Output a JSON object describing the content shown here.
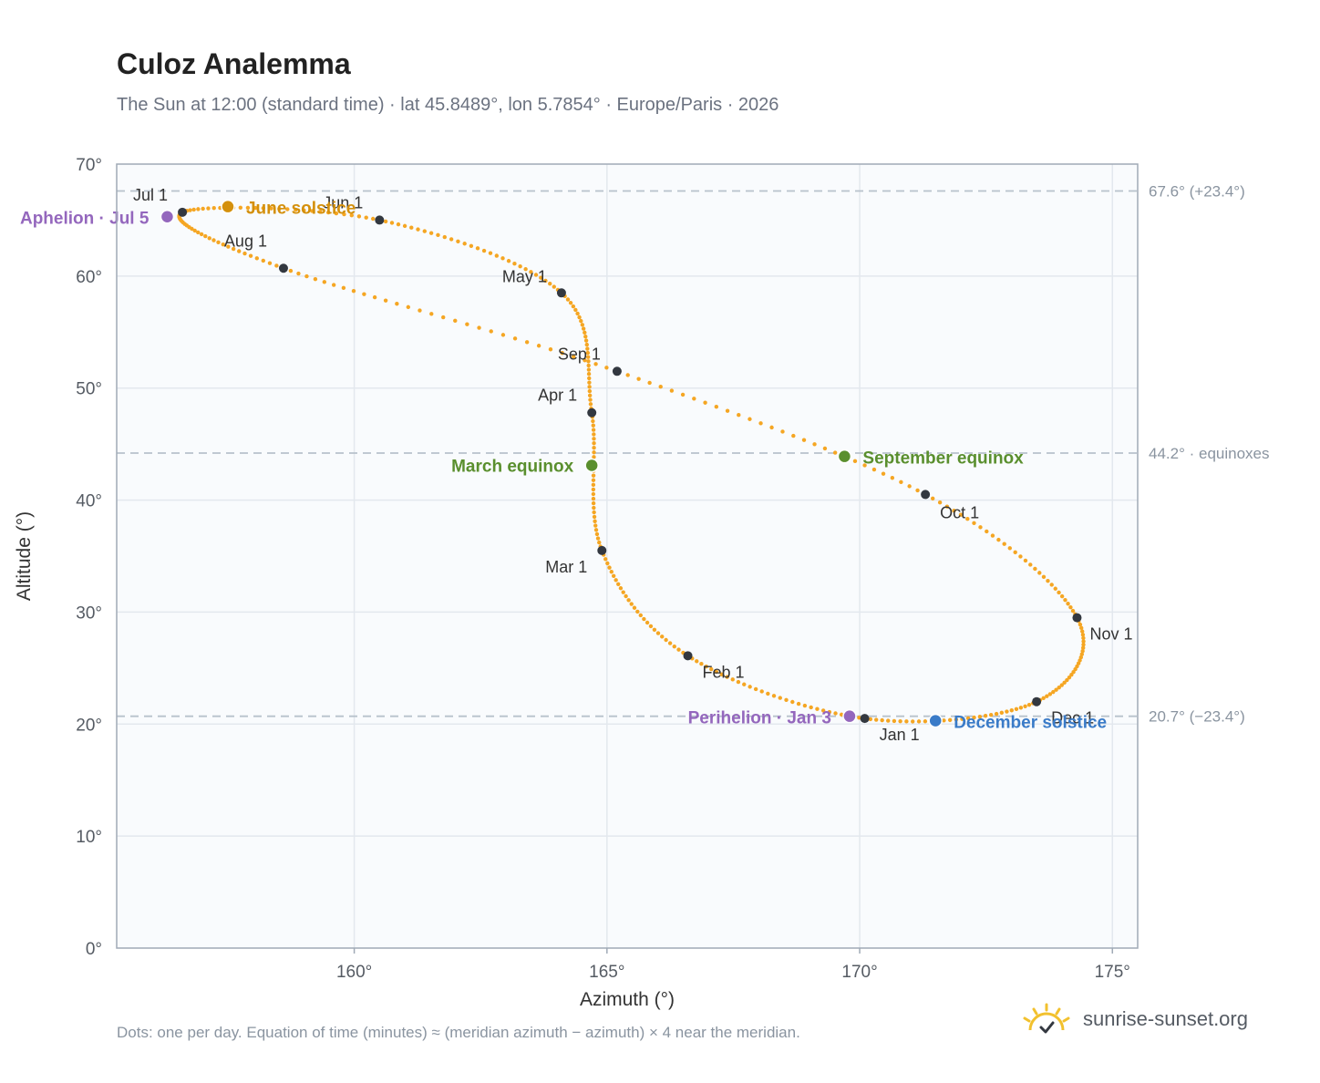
{
  "title": "Culoz Analemma",
  "subtitle": "The Sun at 12:00 (standard time) · lat 45.8489°, lon 5.7854° · Europe/Paris · 2026",
  "footnote": "Dots: one per day. Equation of time (minutes) ≈ (meridian azimuth − azimuth) × 4 near the meridian.",
  "brand": {
    "name": "sunrise-sunset.org",
    "icon": "sun-logo-icon"
  },
  "colors": {
    "curve": "#f5a623",
    "month_marker": "#333840",
    "equinox": "#5a8f2e",
    "june_solstice": "#d4900c",
    "december_solstice": "#3a7bc8",
    "apsis": "#9467bd",
    "reference_line": "#b8c2cc",
    "plot_bg": "#f9fbfd",
    "grid": "#e3e8ee"
  },
  "chart_data": {
    "type": "scatter",
    "title": "Culoz Analemma",
    "xlabel": "Azimuth (°)",
    "ylabel": "Altitude (°)",
    "xlim": [
      155.3,
      175.5
    ],
    "ylim": [
      0,
      70
    ],
    "x_ticks": [
      160,
      165,
      170,
      175
    ],
    "x_tick_labels": [
      "160°",
      "165°",
      "170°",
      "175°"
    ],
    "y_ticks": [
      0,
      10,
      20,
      30,
      40,
      50,
      60,
      70
    ],
    "y_tick_labels": [
      "0°",
      "10°",
      "20°",
      "30°",
      "40°",
      "50°",
      "60°",
      "70°"
    ],
    "grid": true,
    "reference_lines": [
      {
        "y": 67.6,
        "label": "67.6° (+23.4°)"
      },
      {
        "y": 44.2,
        "label": "44.2° · equinoxes"
      },
      {
        "y": 20.7,
        "label": "20.7° (−23.4°)"
      }
    ],
    "month_markers": [
      {
        "label": "Jan 1",
        "x": 170.1,
        "y": 20.5
      },
      {
        "label": "Feb 1",
        "x": 166.6,
        "y": 26.1
      },
      {
        "label": "Mar 1",
        "x": 164.9,
        "y": 35.5
      },
      {
        "label": "Apr 1",
        "x": 164.7,
        "y": 47.8
      },
      {
        "label": "May 1",
        "x": 164.1,
        "y": 58.5
      },
      {
        "label": "Jun 1",
        "x": 160.5,
        "y": 65.0
      },
      {
        "label": "Jul 1",
        "x": 156.6,
        "y": 65.7
      },
      {
        "label": "Aug 1",
        "x": 158.6,
        "y": 60.7
      },
      {
        "label": "Sep 1",
        "x": 165.2,
        "y": 51.5
      },
      {
        "label": "Oct 1",
        "x": 171.3,
        "y": 40.5
      },
      {
        "label": "Nov 1",
        "x": 174.3,
        "y": 29.5
      },
      {
        "label": "Dec 1",
        "x": 173.5,
        "y": 22.0
      }
    ],
    "events": [
      {
        "label": "March equinox",
        "x": 164.7,
        "y": 43.1,
        "color_key": "equinox"
      },
      {
        "label": "June solstice",
        "x": 157.5,
        "y": 66.2,
        "color_key": "june_solstice"
      },
      {
        "label": "September equinox",
        "x": 169.7,
        "y": 43.9,
        "color_key": "equinox"
      },
      {
        "label": "December solstice",
        "x": 171.5,
        "y": 20.3,
        "color_key": "december_solstice"
      },
      {
        "label": "Perihelion · Jan 3",
        "x": 169.8,
        "y": 20.7,
        "color_key": "apsis"
      },
      {
        "label": "Aphelion · Jul 5",
        "x": 156.3,
        "y": 65.3,
        "color_key": "apsis"
      }
    ]
  }
}
